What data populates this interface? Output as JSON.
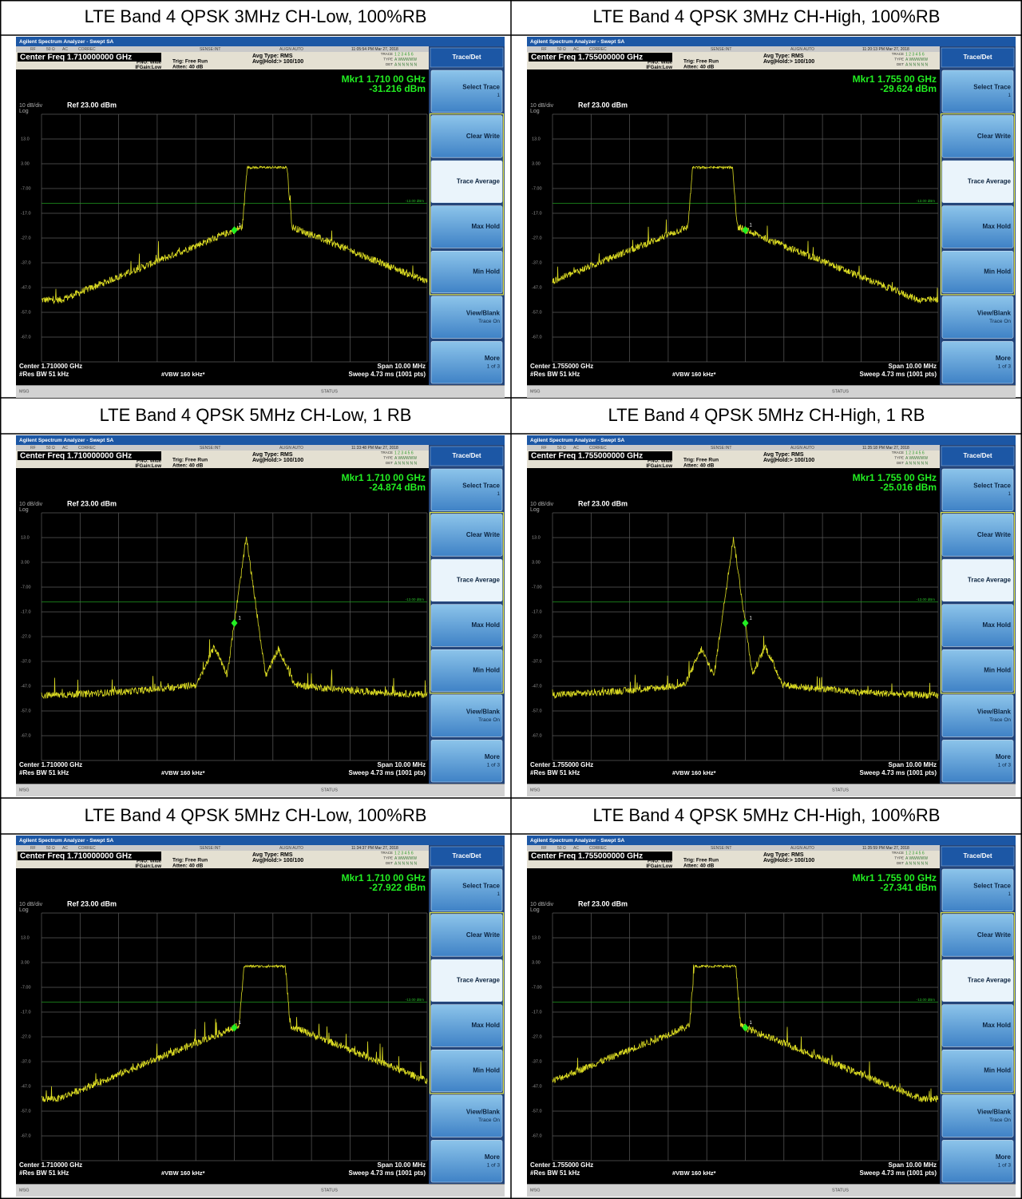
{
  "screen": {
    "app_title": "Agilent Spectrum Analyzer - Swept SA",
    "status_flags": [
      "RF",
      "50 Ω",
      "AC",
      "CORREC"
    ],
    "sense": "SENSE:INT",
    "align": "ALIGN AUTO",
    "pno": "PNO: Wide",
    "ifgain": "IFGain:Low",
    "trig": "Trig: Free Run",
    "atten": "Atten: 40 dB",
    "avg_type": "Avg Type: RMS",
    "avg_hold": "Avg|Hold:> 100/100",
    "trace_labels": [
      "TRACE",
      "TYPE",
      "DET"
    ],
    "trace_values": [
      "1 2 3 4 5 6",
      "A WWWWW",
      "A N N N N N"
    ],
    "scale": "10 dB/div",
    "log": "Log",
    "ref": "Ref 23.00 dBm",
    "y_labels": [
      "13.0",
      "3.00",
      "-7.00",
      "-17.0",
      "-27.0",
      "-37.0",
      "-47.0",
      "-57.0",
      "-67.0"
    ],
    "limit_label": "-13.00 dBm",
    "marker_number": "1",
    "res_bw": "#Res BW 51 kHz",
    "vbw": "#VBW 160 kHz*",
    "span": "Span 10.00 MHz",
    "sweep": "Sweep  4.73 ms (1001 pts)",
    "msg": "MSG",
    "status": "STATUS",
    "softkey_header": "Trace/Det",
    "softkeys": [
      {
        "label": "Select Trace",
        "sub": "1"
      },
      {
        "label": "Clear Write"
      },
      {
        "label": "Trace Average"
      },
      {
        "label": "Max Hold"
      },
      {
        "label": "Min Hold"
      },
      {
        "label": "View/Blank",
        "sub": "Trace On"
      },
      {
        "label": "More",
        "sub": "1 of 3"
      }
    ]
  },
  "panels": [
    {
      "caption": "LTE Band 4 QPSK 3MHz CH-Low, 100%RB",
      "center_freq": "Center Freq 1.710000000 GHz",
      "time": "11:05:54 PM Mar 27, 2018",
      "marker_freq": "Mkr1 1.710 00 GHz",
      "marker_level": "-31.216 dBm",
      "center": "Center 1.710000 GHz"
    },
    {
      "caption": "LTE Band 4 QPSK 3MHz CH-High, 100%RB",
      "center_freq": "Center Freq 1.755000000 GHz",
      "time": "11:20:13 PM Mar 27, 2018",
      "marker_freq": "Mkr1 1.755 00 GHz",
      "marker_level": "-29.624 dBm",
      "center": "Center 1.755000 GHz"
    },
    {
      "caption": "LTE Band 4 QPSK 5MHz CH-Low, 1 RB",
      "center_freq": "Center Freq 1.710000000 GHz",
      "time": "11:33:48 PM Mar 27, 2018",
      "marker_freq": "Mkr1 1.710 00 GHz",
      "marker_level": "-24.874 dBm",
      "center": "Center 1.710000 GHz"
    },
    {
      "caption": "LTE Band 4 QPSK 5MHz CH-High, 1 RB",
      "center_freq": "Center Freq 1.755000000 GHz",
      "time": "11:35:18 PM Mar 27, 2018",
      "marker_freq": "Mkr1 1.755 00 GHz",
      "marker_level": "-25.016 dBm",
      "center": "Center 1.755000 GHz"
    },
    {
      "caption": "LTE Band 4 QPSK 5MHz CH-Low, 100%RB",
      "center_freq": "Center Freq 1.710000000 GHz",
      "time": "11:34:37 PM Mar 27, 2018",
      "marker_freq": "Mkr1 1.710 00 GHz",
      "marker_level": "-27.922 dBm",
      "center": "Center 1.710000 GHz"
    },
    {
      "caption": "LTE Band 4 QPSK 5MHz CH-High, 100%RB",
      "center_freq": "Center Freq 1.755000000 GHz",
      "time": "11:35:59 PM Mar 27, 2018",
      "marker_freq": "Mkr1 1.755 00 GHz",
      "marker_level": "-27.341 dBm",
      "center": "Center 1.755000 GHz"
    }
  ]
}
